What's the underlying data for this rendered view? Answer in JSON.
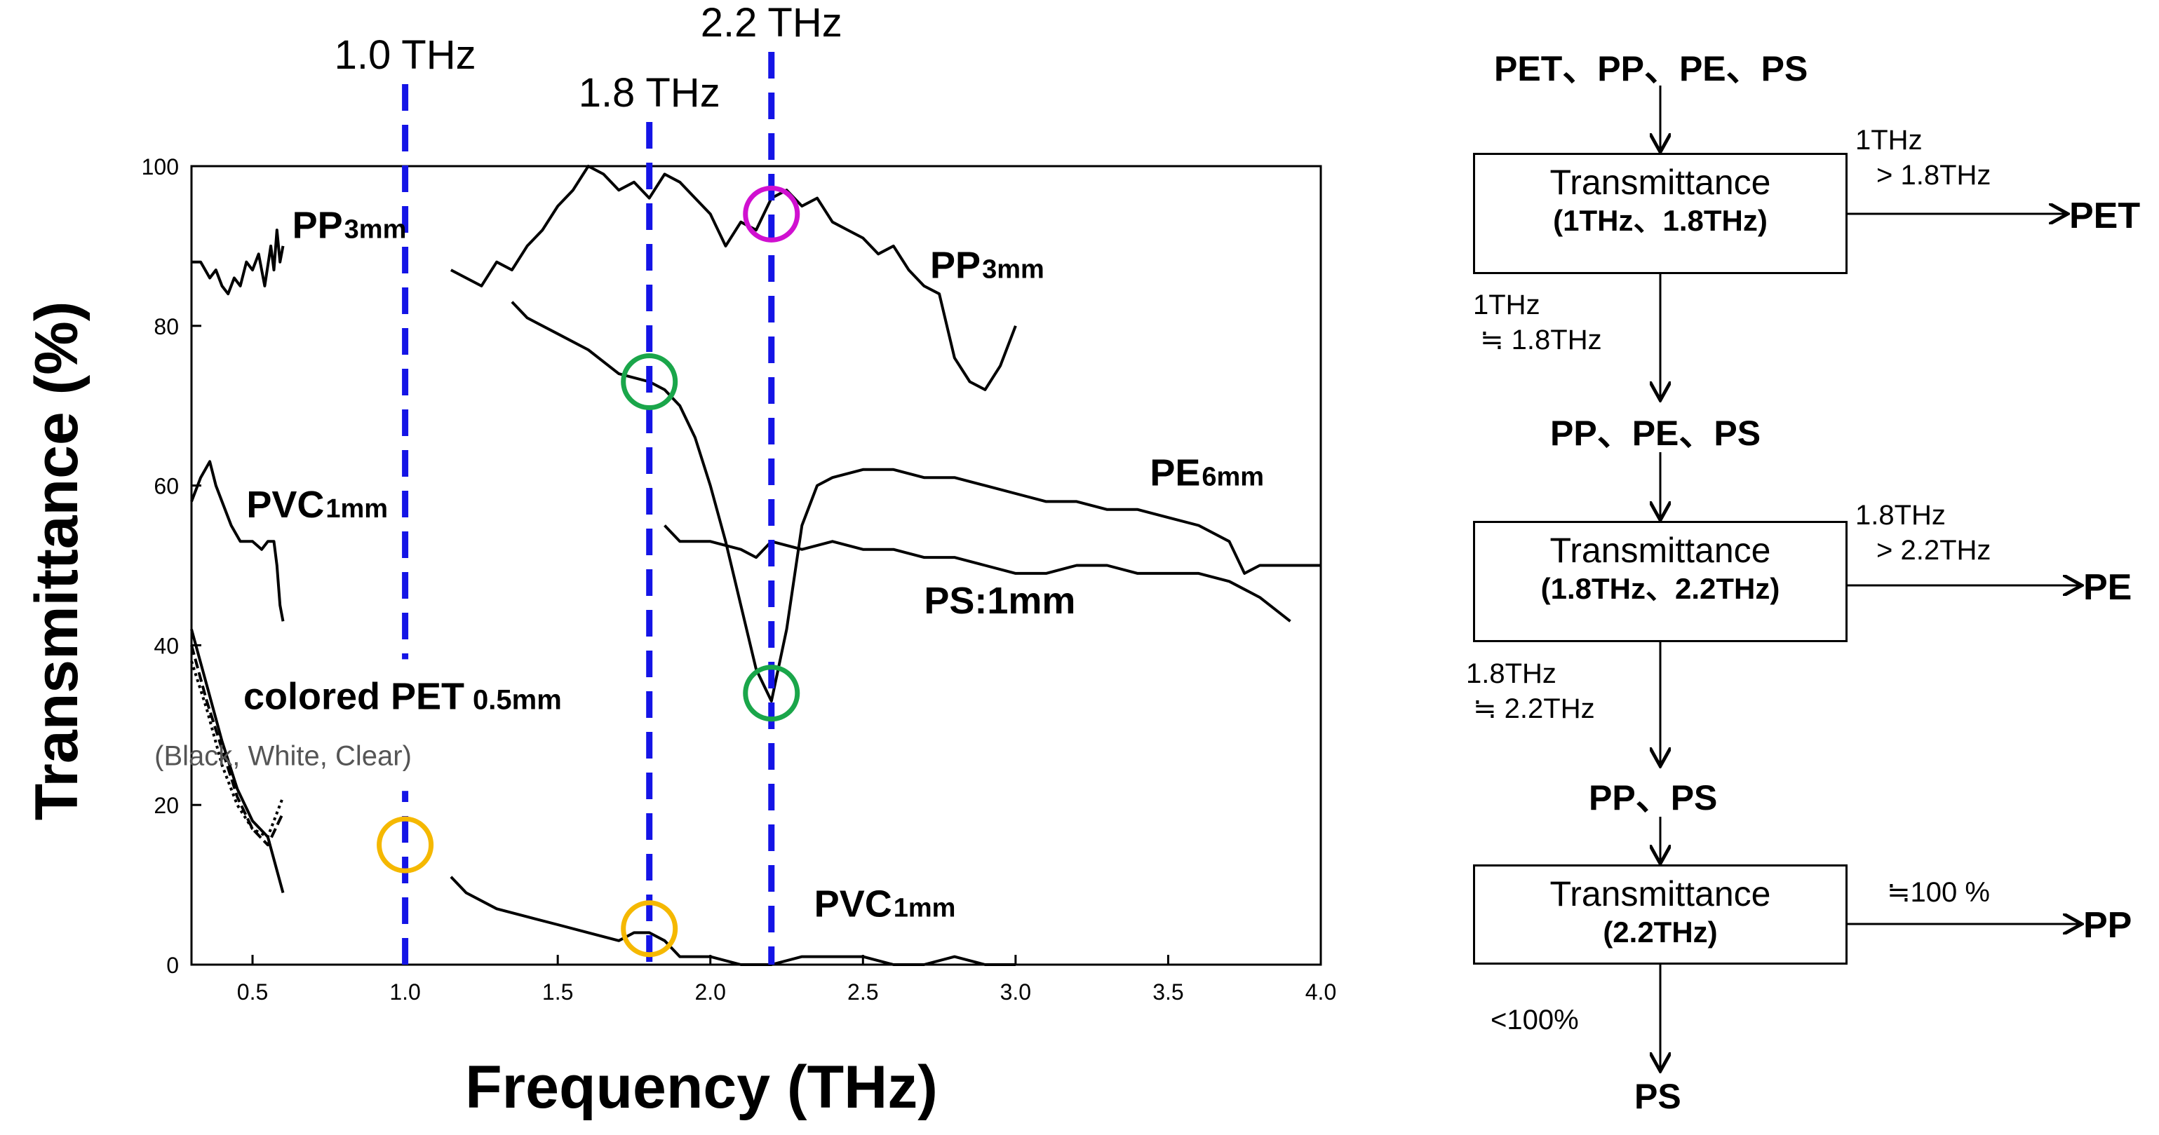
{
  "chart_data": {
    "type": "line",
    "xlabel": "Frequency (THz)",
    "ylabel": "Transmittance (%)",
    "xlim": [
      0.3,
      4.0
    ],
    "ylim": [
      0,
      100
    ],
    "xticks": [
      "0.5",
      "1.0",
      "1.5",
      "2.0",
      "2.5",
      "3.0",
      "3.5",
      "4.0"
    ],
    "yticks": [
      "0",
      "20",
      "40",
      "60",
      "80",
      "100"
    ],
    "xtick_values": [
      0.5,
      1.0,
      1.5,
      2.0,
      2.5,
      3.0,
      3.5,
      4.0
    ],
    "ytick_values": [
      0,
      20,
      40,
      60,
      80,
      100
    ],
    "markers": [
      {
        "label": "1.0 THz",
        "x": 1.0
      },
      {
        "label": "1.8 THz",
        "x": 1.8
      },
      {
        "label": "2.2 THz",
        "x": 2.2
      }
    ],
    "series": [
      {
        "name": "PP 3mm (low band)",
        "x": [
          0.3,
          0.33,
          0.36,
          0.38,
          0.4,
          0.42,
          0.44,
          0.46,
          0.48,
          0.5,
          0.52,
          0.54,
          0.56,
          0.57,
          0.58,
          0.59,
          0.6
        ],
        "values": [
          88,
          88,
          86,
          87,
          85,
          84,
          86,
          85,
          88,
          87,
          89,
          85,
          90,
          87,
          92,
          88,
          90
        ]
      },
      {
        "name": "PP 3mm (high band)",
        "x": [
          1.15,
          1.2,
          1.25,
          1.3,
          1.35,
          1.4,
          1.45,
          1.5,
          1.55,
          1.6,
          1.65,
          1.7,
          1.75,
          1.8,
          1.85,
          1.9,
          1.95,
          2.0,
          2.05,
          2.1,
          2.15,
          2.2,
          2.25,
          2.3,
          2.35,
          2.4,
          2.45,
          2.5,
          2.55,
          2.6,
          2.65,
          2.7,
          2.75,
          2.8,
          2.85,
          2.9,
          2.95,
          3.0
        ],
        "values": [
          87,
          86,
          85,
          88,
          87,
          90,
          92,
          95,
          97,
          100,
          99,
          97,
          98,
          96,
          99,
          98,
          96,
          94,
          90,
          93,
          92,
          96,
          97,
          95,
          96,
          93,
          92,
          91,
          89,
          90,
          87,
          85,
          84,
          76,
          73,
          72,
          75,
          80
        ]
      },
      {
        "name": "PE 6mm",
        "x": [
          1.35,
          1.4,
          1.5,
          1.6,
          1.7,
          1.8,
          1.85,
          1.9,
          1.95,
          2.0,
          2.05,
          2.1,
          2.15,
          2.2,
          2.25,
          2.3,
          2.35,
          2.4,
          2.5,
          2.6,
          2.7,
          2.8,
          2.9,
          3.0,
          3.1,
          3.2,
          3.3,
          3.4,
          3.5,
          3.6,
          3.7,
          3.75,
          3.8,
          3.9,
          4.0
        ],
        "values": [
          83,
          81,
          79,
          77,
          74,
          73,
          72,
          70,
          66,
          60,
          53,
          45,
          37,
          33,
          42,
          55,
          60,
          61,
          62,
          62,
          61,
          61,
          60,
          59,
          58,
          58,
          57,
          57,
          56,
          55,
          53,
          49,
          50,
          50,
          50
        ]
      },
      {
        "name": "PS 1mm",
        "x": [
          1.85,
          1.9,
          2.0,
          2.1,
          2.15,
          2.2,
          2.3,
          2.4,
          2.5,
          2.6,
          2.7,
          2.8,
          2.9,
          3.0,
          3.1,
          3.2,
          3.3,
          3.4,
          3.5,
          3.6,
          3.7,
          3.8,
          3.9
        ],
        "values": [
          55,
          53,
          53,
          52,
          51,
          53,
          52,
          53,
          52,
          52,
          51,
          51,
          50,
          49,
          49,
          50,
          50,
          49,
          49,
          49,
          48,
          46,
          43
        ]
      },
      {
        "name": "PVC 1mm (low band)",
        "x": [
          0.3,
          0.33,
          0.36,
          0.38,
          0.4,
          0.43,
          0.46,
          0.5,
          0.53,
          0.55,
          0.57,
          0.58,
          0.59,
          0.6
        ],
        "values": [
          58,
          61,
          63,
          60,
          58,
          55,
          53,
          53,
          52,
          53,
          53,
          50,
          45,
          43
        ]
      },
      {
        "name": "PVC 1mm (high band)",
        "x": [
          1.15,
          1.2,
          1.3,
          1.4,
          1.5,
          1.6,
          1.7,
          1.75,
          1.8,
          1.85,
          1.9,
          2.0,
          2.1,
          2.2,
          2.3,
          2.4,
          2.5,
          2.6,
          2.7,
          2.8,
          2.9,
          3.0
        ],
        "values": [
          11,
          9,
          7,
          6,
          5,
          4,
          3,
          4,
          4,
          3,
          1,
          1,
          0,
          0,
          1,
          1,
          1,
          0,
          0,
          1,
          0,
          0
        ]
      },
      {
        "name": "colored PET 0.5mm Black",
        "x": [
          0.3,
          0.35,
          0.4,
          0.45,
          0.5,
          0.55,
          0.6
        ],
        "values": [
          42,
          35,
          28,
          22,
          18,
          16,
          9
        ]
      },
      {
        "name": "colored PET 0.5mm White",
        "x": [
          0.3,
          0.35,
          0.4,
          0.45,
          0.5,
          0.55,
          0.6
        ],
        "values": [
          40,
          33,
          27,
          21,
          17,
          15,
          19
        ]
      },
      {
        "name": "colored PET 0.5mm Clear",
        "x": [
          0.3,
          0.35,
          0.4,
          0.45,
          0.5,
          0.55,
          0.6
        ],
        "values": [
          38,
          32,
          25,
          20,
          17,
          16,
          21
        ]
      }
    ],
    "annotations": [
      {
        "text": "PP",
        "sub": "3mm",
        "x": 0.63,
        "y": 91
      },
      {
        "text": "PP",
        "sub": "3mm",
        "x": 2.72,
        "y": 86
      },
      {
        "text": "PE",
        "sub": "6mm",
        "x": 3.44,
        "y": 60
      },
      {
        "text": "PS:1mm",
        "sub": "",
        "x": 2.7,
        "y": 44
      },
      {
        "text": "PVC",
        "sub": "1mm",
        "x": 0.48,
        "y": 56
      },
      {
        "text": "PVC",
        "sub": "1mm",
        "x": 2.34,
        "y": 6
      },
      {
        "text": "colored PET",
        "sub": "0.5mm",
        "x": 0.47,
        "y": 32
      },
      {
        "text": "(Black, White, Clear)",
        "sub": "",
        "x": 0.6,
        "y": 25
      }
    ],
    "circles": [
      {
        "color": "#d010d0",
        "x": 2.2,
        "y": 94
      },
      {
        "color": "#1aa64a",
        "x": 1.8,
        "y": 73
      },
      {
        "color": "#1aa64a",
        "x": 2.2,
        "y": 34
      },
      {
        "color": "#f5b800",
        "x": 1.0,
        "y": 15
      },
      {
        "color": "#f5b800",
        "x": 1.8,
        "y": 4.5
      }
    ]
  },
  "flowchart": {
    "start": "PET、PP、PE、PS",
    "step1": {
      "title": "Transmittance",
      "sub": "(1THz、1.8THz)",
      "cond_out": [
        "1THz",
        "> 1.8THz"
      ],
      "out": "PET",
      "cond_down": [
        "1THz",
        "≒ 1.8THz"
      ]
    },
    "mid1": "PP、PE、PS",
    "step2": {
      "title": "Transmittance",
      "sub": "(1.8THz、2.2THz)",
      "cond_out": [
        "1.8THz",
        "> 2.2THz"
      ],
      "out": "PE",
      "cond_down": [
        "1.8THz",
        "≒ 2.2THz"
      ]
    },
    "mid2": "PP、PS",
    "step3": {
      "title": "Transmittance",
      "sub": "(2.2THz)",
      "cond_out": [
        "≒100 %"
      ],
      "out": "PP",
      "cond_down": [
        "<100%"
      ]
    },
    "end": "PS"
  },
  "colors": {
    "marker_line": "#1414e6",
    "axis": "#000000"
  }
}
